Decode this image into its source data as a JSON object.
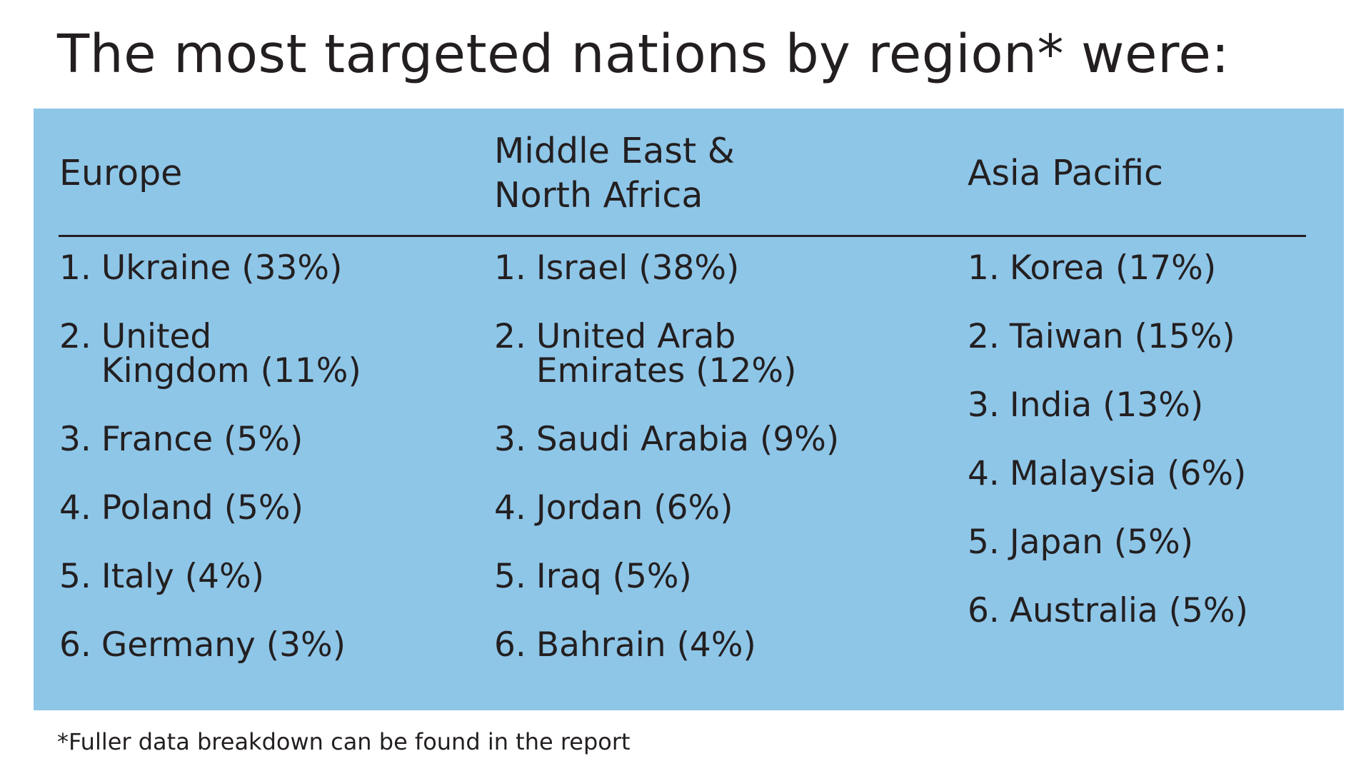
{
  "title": "The most targeted nations by region* were:",
  "panel_color": "#8ec6e8",
  "regions": [
    {
      "name": "Europe",
      "items": [
        {
          "rank": "1.",
          "text": "Ukraine (33%)"
        },
        {
          "rank": "2.",
          "text": "United\nKingdom (11%)"
        },
        {
          "rank": "3.",
          "text": "France (5%)"
        },
        {
          "rank": "4.",
          "text": "Poland (5%)"
        },
        {
          "rank": "5.",
          "text": "Italy (4%)"
        },
        {
          "rank": "6.",
          "text": "Germany (3%)"
        }
      ]
    },
    {
      "name": "Middle East &\nNorth Africa",
      "items": [
        {
          "rank": "1.",
          "text": "Israel (38%)"
        },
        {
          "rank": "2.",
          "text": "United Arab\nEmirates (12%)"
        },
        {
          "rank": "3.",
          "text": "Saudi Arabia (9%)"
        },
        {
          "rank": "4.",
          "text": "Jordan (6%)"
        },
        {
          "rank": "5.",
          "text": "Iraq (5%)"
        },
        {
          "rank": "6.",
          "text": "Bahrain (4%)"
        }
      ]
    },
    {
      "name": "Asia Pacific",
      "items": [
        {
          "rank": "1.",
          "text": "Korea (17%)"
        },
        {
          "rank": "2.",
          "text": "Taiwan (15%)"
        },
        {
          "rank": "3.",
          "text": "India (13%)"
        },
        {
          "rank": "4.",
          "text": "Malaysia (6%)"
        },
        {
          "rank": "5.",
          "text": "Japan (5%)"
        },
        {
          "rank": "6.",
          "text": "Australia (5%)"
        }
      ]
    }
  ],
  "footnote": "*Fuller data breakdown can be found in the report"
}
